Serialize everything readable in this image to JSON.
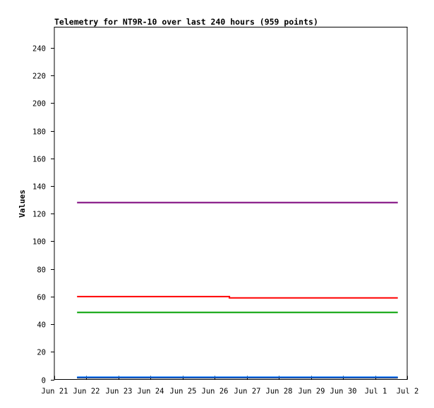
{
  "chart_data": {
    "type": "line",
    "title": "Telemetry for NT9R-10 over last 240 hours (959 points)",
    "xlabel": "",
    "ylabel": "Values",
    "ylim": [
      0,
      255
    ],
    "yticks": [
      0,
      20,
      40,
      60,
      80,
      100,
      120,
      140,
      160,
      180,
      200,
      220,
      240
    ],
    "x_range": [
      "Jun 21",
      "Jul 2"
    ],
    "x_ticks": [
      "Jun 21",
      "Jun 22",
      "Jun 23",
      "Jun 24",
      "Jun 25",
      "Jun 26",
      "Jun 27",
      "Jun 28",
      "Jun 29",
      "Jun 30",
      "Jul 1",
      "Jul 2"
    ],
    "grid": false,
    "legend": "none",
    "series": [
      {
        "color": "#7b007b",
        "x": [
          "Jun 21 17:00",
          "Jul 1 17:00"
        ],
        "values": [
          128,
          128
        ]
      },
      {
        "color": "#ff0000",
        "x": [
          "Jun 21 17:00",
          "Jun 26 11:00",
          "Jun 26 11:00",
          "Jul 1 17:00"
        ],
        "values": [
          60,
          60,
          59,
          59
        ]
      },
      {
        "color": "#00a000",
        "x": [
          "Jun 21 17:00",
          "Jul 1 17:00"
        ],
        "values": [
          48.5,
          48.5
        ]
      },
      {
        "color": "#000000",
        "x": [
          "Jun 21 17:00",
          "Jul 1 17:00"
        ],
        "values": [
          1.3,
          1.3
        ]
      },
      {
        "color": "#0070ff",
        "x": [
          "Jun 21 17:00",
          "Jul 1 17:00"
        ],
        "values": [
          1.7,
          1.7
        ]
      }
    ]
  }
}
